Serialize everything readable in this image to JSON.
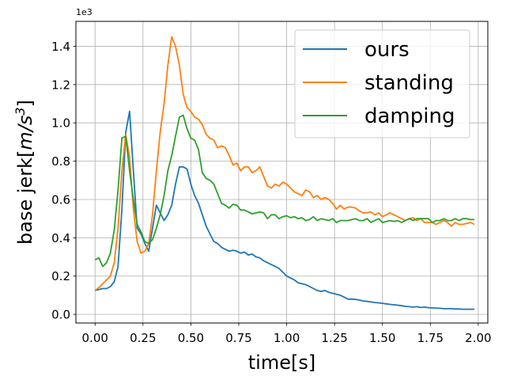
{
  "chart_data": {
    "type": "line",
    "xlabel": "time[s]",
    "ylabel": "base jerk[m/s³]",
    "ylabel_parts": {
      "prefix": "base jerk[",
      "unit": "m/s",
      "exp": "3",
      "suffix": "]"
    },
    "y_offset_label": "1e3",
    "xlim": [
      -0.1,
      2.05
    ],
    "ylim": [
      -0.045,
      1.53
    ],
    "xticks": [
      0.0,
      0.25,
      0.5,
      0.75,
      1.0,
      1.25,
      1.5,
      1.75,
      2.0
    ],
    "xtick_labels": [
      "0.00",
      "0.25",
      "0.50",
      "0.75",
      "1.00",
      "1.25",
      "1.50",
      "1.75",
      "2.00"
    ],
    "yticks": [
      0.0,
      0.2,
      0.4,
      0.6,
      0.8,
      1.0,
      1.2,
      1.4
    ],
    "ytick_labels": [
      "0.0",
      "0.2",
      "0.4",
      "0.6",
      "0.8",
      "1.0",
      "1.2",
      "1.4"
    ],
    "grid": true,
    "legend_position": "top-right",
    "series": [
      {
        "name": "ours",
        "color": "#1f77b4",
        "points": [
          [
            0.0,
            0.125
          ],
          [
            0.02,
            0.13
          ],
          [
            0.04,
            0.135
          ],
          [
            0.06,
            0.135
          ],
          [
            0.08,
            0.145
          ],
          [
            0.1,
            0.17
          ],
          [
            0.12,
            0.25
          ],
          [
            0.14,
            0.55
          ],
          [
            0.16,
            0.95
          ],
          [
            0.18,
            1.06
          ],
          [
            0.2,
            0.75
          ],
          [
            0.22,
            0.45
          ],
          [
            0.24,
            0.42
          ],
          [
            0.26,
            0.37
          ],
          [
            0.28,
            0.33
          ],
          [
            0.3,
            0.45
          ],
          [
            0.32,
            0.57
          ],
          [
            0.34,
            0.53
          ],
          [
            0.36,
            0.49
          ],
          [
            0.38,
            0.52
          ],
          [
            0.4,
            0.57
          ],
          [
            0.42,
            0.68
          ],
          [
            0.44,
            0.77
          ],
          [
            0.46,
            0.77
          ],
          [
            0.48,
            0.76
          ],
          [
            0.5,
            0.68
          ],
          [
            0.52,
            0.62
          ],
          [
            0.54,
            0.58
          ],
          [
            0.56,
            0.52
          ],
          [
            0.58,
            0.46
          ],
          [
            0.6,
            0.42
          ],
          [
            0.62,
            0.38
          ],
          [
            0.64,
            0.37
          ],
          [
            0.66,
            0.35
          ],
          [
            0.68,
            0.34
          ],
          [
            0.7,
            0.33
          ],
          [
            0.72,
            0.335
          ],
          [
            0.74,
            0.33
          ],
          [
            0.76,
            0.32
          ],
          [
            0.78,
            0.325
          ],
          [
            0.8,
            0.31
          ],
          [
            0.82,
            0.315
          ],
          [
            0.84,
            0.3
          ],
          [
            0.86,
            0.295
          ],
          [
            0.88,
            0.28
          ],
          [
            0.9,
            0.27
          ],
          [
            0.92,
            0.26
          ],
          [
            0.94,
            0.25
          ],
          [
            0.96,
            0.24
          ],
          [
            0.98,
            0.22
          ],
          [
            1.0,
            0.2
          ],
          [
            1.02,
            0.19
          ],
          [
            1.04,
            0.18
          ],
          [
            1.06,
            0.165
          ],
          [
            1.08,
            0.16
          ],
          [
            1.1,
            0.155
          ],
          [
            1.12,
            0.145
          ],
          [
            1.14,
            0.135
          ],
          [
            1.16,
            0.125
          ],
          [
            1.18,
            0.12
          ],
          [
            1.2,
            0.125
          ],
          [
            1.22,
            0.115
          ],
          [
            1.24,
            0.11
          ],
          [
            1.26,
            0.105
          ],
          [
            1.28,
            0.1
          ],
          [
            1.3,
            0.09
          ],
          [
            1.32,
            0.08
          ],
          [
            1.34,
            0.08
          ],
          [
            1.36,
            0.078
          ],
          [
            1.38,
            0.075
          ],
          [
            1.4,
            0.07
          ],
          [
            1.42,
            0.068
          ],
          [
            1.44,
            0.065
          ],
          [
            1.46,
            0.062
          ],
          [
            1.48,
            0.06
          ],
          [
            1.5,
            0.058
          ],
          [
            1.52,
            0.055
          ],
          [
            1.54,
            0.052
          ],
          [
            1.56,
            0.05
          ],
          [
            1.58,
            0.048
          ],
          [
            1.6,
            0.045
          ],
          [
            1.62,
            0.042
          ],
          [
            1.64,
            0.04
          ],
          [
            1.66,
            0.038
          ],
          [
            1.68,
            0.04
          ],
          [
            1.7,
            0.036
          ],
          [
            1.72,
            0.038
          ],
          [
            1.74,
            0.035
          ],
          [
            1.76,
            0.034
          ],
          [
            1.78,
            0.033
          ],
          [
            1.8,
            0.032
          ],
          [
            1.82,
            0.03
          ],
          [
            1.84,
            0.03
          ],
          [
            1.86,
            0.03
          ],
          [
            1.88,
            0.028
          ],
          [
            1.9,
            0.028
          ],
          [
            1.92,
            0.027
          ],
          [
            1.94,
            0.027
          ],
          [
            1.96,
            0.027
          ],
          [
            1.98,
            0.027
          ]
        ]
      },
      {
        "name": "standing",
        "color": "#ff7f0e",
        "points": [
          [
            0.0,
            0.125
          ],
          [
            0.02,
            0.14
          ],
          [
            0.04,
            0.16
          ],
          [
            0.06,
            0.18
          ],
          [
            0.08,
            0.2
          ],
          [
            0.1,
            0.27
          ],
          [
            0.12,
            0.45
          ],
          [
            0.14,
            0.75
          ],
          [
            0.16,
            0.94
          ],
          [
            0.18,
            0.82
          ],
          [
            0.2,
            0.55
          ],
          [
            0.22,
            0.38
          ],
          [
            0.24,
            0.32
          ],
          [
            0.26,
            0.33
          ],
          [
            0.28,
            0.37
          ],
          [
            0.3,
            0.52
          ],
          [
            0.32,
            0.75
          ],
          [
            0.34,
            0.95
          ],
          [
            0.36,
            1.1
          ],
          [
            0.38,
            1.3
          ],
          [
            0.4,
            1.45
          ],
          [
            0.42,
            1.4
          ],
          [
            0.44,
            1.3
          ],
          [
            0.46,
            1.15
          ],
          [
            0.48,
            1.08
          ],
          [
            0.5,
            1.06
          ],
          [
            0.52,
            1.03
          ],
          [
            0.54,
            1.02
          ],
          [
            0.56,
            0.99
          ],
          [
            0.58,
            0.94
          ],
          [
            0.6,
            0.92
          ],
          [
            0.62,
            0.91
          ],
          [
            0.64,
            0.87
          ],
          [
            0.66,
            0.88
          ],
          [
            0.68,
            0.87
          ],
          [
            0.7,
            0.83
          ],
          [
            0.72,
            0.78
          ],
          [
            0.74,
            0.79
          ],
          [
            0.76,
            0.75
          ],
          [
            0.78,
            0.77
          ],
          [
            0.8,
            0.77
          ],
          [
            0.82,
            0.74
          ],
          [
            0.84,
            0.75
          ],
          [
            0.86,
            0.77
          ],
          [
            0.88,
            0.72
          ],
          [
            0.9,
            0.67
          ],
          [
            0.92,
            0.66
          ],
          [
            0.94,
            0.68
          ],
          [
            0.96,
            0.67
          ],
          [
            0.98,
            0.69
          ],
          [
            1.0,
            0.68
          ],
          [
            1.02,
            0.66
          ],
          [
            1.04,
            0.64
          ],
          [
            1.06,
            0.63
          ],
          [
            1.08,
            0.62
          ],
          [
            1.1,
            0.65
          ],
          [
            1.12,
            0.64
          ],
          [
            1.14,
            0.61
          ],
          [
            1.16,
            0.62
          ],
          [
            1.18,
            0.6
          ],
          [
            1.2,
            0.61
          ],
          [
            1.22,
            0.6
          ],
          [
            1.24,
            0.58
          ],
          [
            1.26,
            0.55
          ],
          [
            1.28,
            0.57
          ],
          [
            1.3,
            0.55
          ],
          [
            1.32,
            0.56
          ],
          [
            1.34,
            0.56
          ],
          [
            1.36,
            0.555
          ],
          [
            1.38,
            0.54
          ],
          [
            1.4,
            0.53
          ],
          [
            1.42,
            0.53
          ],
          [
            1.44,
            0.535
          ],
          [
            1.46,
            0.52
          ],
          [
            1.48,
            0.53
          ],
          [
            1.5,
            0.51
          ],
          [
            1.52,
            0.52
          ],
          [
            1.54,
            0.53
          ],
          [
            1.56,
            0.52
          ],
          [
            1.58,
            0.51
          ],
          [
            1.6,
            0.5
          ],
          [
            1.62,
            0.49
          ],
          [
            1.64,
            0.5
          ],
          [
            1.66,
            0.505
          ],
          [
            1.68,
            0.49
          ],
          [
            1.7,
            0.5
          ],
          [
            1.72,
            0.48
          ],
          [
            1.74,
            0.48
          ],
          [
            1.76,
            0.48
          ],
          [
            1.78,
            0.47
          ],
          [
            1.8,
            0.48
          ],
          [
            1.82,
            0.49
          ],
          [
            1.84,
            0.48
          ],
          [
            1.86,
            0.46
          ],
          [
            1.88,
            0.48
          ],
          [
            1.9,
            0.47
          ],
          [
            1.92,
            0.47
          ],
          [
            1.94,
            0.475
          ],
          [
            1.96,
            0.48
          ],
          [
            1.98,
            0.47
          ]
        ]
      },
      {
        "name": "damping",
        "color": "#2ca02c",
        "points": [
          [
            0.0,
            0.285
          ],
          [
            0.02,
            0.295
          ],
          [
            0.04,
            0.25
          ],
          [
            0.06,
            0.27
          ],
          [
            0.08,
            0.32
          ],
          [
            0.1,
            0.44
          ],
          [
            0.12,
            0.65
          ],
          [
            0.14,
            0.92
          ],
          [
            0.16,
            0.93
          ],
          [
            0.18,
            0.75
          ],
          [
            0.2,
            0.6
          ],
          [
            0.22,
            0.47
          ],
          [
            0.24,
            0.43
          ],
          [
            0.26,
            0.38
          ],
          [
            0.28,
            0.37
          ],
          [
            0.3,
            0.39
          ],
          [
            0.32,
            0.45
          ],
          [
            0.34,
            0.52
          ],
          [
            0.36,
            0.62
          ],
          [
            0.38,
            0.75
          ],
          [
            0.4,
            0.83
          ],
          [
            0.42,
            0.93
          ],
          [
            0.44,
            1.03
          ],
          [
            0.46,
            1.04
          ],
          [
            0.48,
            0.97
          ],
          [
            0.5,
            0.92
          ],
          [
            0.52,
            0.91
          ],
          [
            0.54,
            0.86
          ],
          [
            0.56,
            0.74
          ],
          [
            0.58,
            0.71
          ],
          [
            0.6,
            0.7
          ],
          [
            0.62,
            0.68
          ],
          [
            0.64,
            0.63
          ],
          [
            0.66,
            0.58
          ],
          [
            0.68,
            0.57
          ],
          [
            0.7,
            0.555
          ],
          [
            0.72,
            0.575
          ],
          [
            0.74,
            0.57
          ],
          [
            0.76,
            0.545
          ],
          [
            0.78,
            0.545
          ],
          [
            0.8,
            0.535
          ],
          [
            0.82,
            0.525
          ],
          [
            0.84,
            0.53
          ],
          [
            0.86,
            0.535
          ],
          [
            0.88,
            0.53
          ],
          [
            0.9,
            0.5
          ],
          [
            0.92,
            0.52
          ],
          [
            0.94,
            0.52
          ],
          [
            0.96,
            0.5
          ],
          [
            0.98,
            0.51
          ],
          [
            1.0,
            0.515
          ],
          [
            1.02,
            0.505
          ],
          [
            1.04,
            0.51
          ],
          [
            1.06,
            0.5
          ],
          [
            1.08,
            0.505
          ],
          [
            1.1,
            0.49
          ],
          [
            1.12,
            0.495
          ],
          [
            1.14,
            0.51
          ],
          [
            1.16,
            0.49
          ],
          [
            1.18,
            0.5
          ],
          [
            1.2,
            0.495
          ],
          [
            1.22,
            0.49
          ],
          [
            1.24,
            0.5
          ],
          [
            1.26,
            0.48
          ],
          [
            1.28,
            0.49
          ],
          [
            1.3,
            0.49
          ],
          [
            1.32,
            0.49
          ],
          [
            1.34,
            0.495
          ],
          [
            1.36,
            0.5
          ],
          [
            1.38,
            0.49
          ],
          [
            1.4,
            0.49
          ],
          [
            1.42,
            0.5
          ],
          [
            1.44,
            0.48
          ],
          [
            1.46,
            0.49
          ],
          [
            1.48,
            0.5
          ],
          [
            1.5,
            0.48
          ],
          [
            1.52,
            0.485
          ],
          [
            1.54,
            0.49
          ],
          [
            1.56,
            0.485
          ],
          [
            1.58,
            0.49
          ],
          [
            1.6,
            0.48
          ],
          [
            1.62,
            0.49
          ],
          [
            1.64,
            0.5
          ],
          [
            1.66,
            0.49
          ],
          [
            1.68,
            0.5
          ],
          [
            1.7,
            0.5
          ],
          [
            1.72,
            0.5
          ],
          [
            1.74,
            0.5
          ],
          [
            1.76,
            0.48
          ],
          [
            1.78,
            0.49
          ],
          [
            1.8,
            0.49
          ],
          [
            1.82,
            0.5
          ],
          [
            1.84,
            0.49
          ],
          [
            1.86,
            0.49
          ],
          [
            1.88,
            0.5
          ],
          [
            1.9,
            0.49
          ],
          [
            1.92,
            0.5
          ],
          [
            1.94,
            0.5
          ],
          [
            1.96,
            0.495
          ],
          [
            1.98,
            0.495
          ]
        ]
      }
    ]
  }
}
